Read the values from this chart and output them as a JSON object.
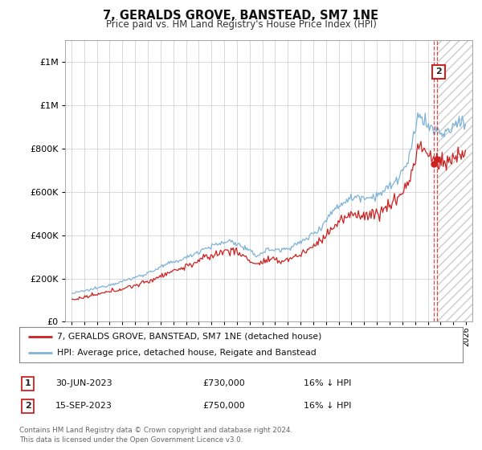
{
  "title": "7, GERALDS GROVE, BANSTEAD, SM7 1NE",
  "subtitle": "Price paid vs. HM Land Registry's House Price Index (HPI)",
  "hpi_color": "#7eb3d8",
  "price_color": "#cc2222",
  "background_color": "#ffffff",
  "grid_color": "#cccccc",
  "ylim": [
    0,
    1300000
  ],
  "xlim_start": 1994.5,
  "xlim_end": 2026.5,
  "transaction1": {
    "date": "30-JUN-2023",
    "price": 730000,
    "label": "16% ↓ HPI",
    "num": "1",
    "t": 2023.496
  },
  "transaction2": {
    "date": "15-SEP-2023",
    "price": 750000,
    "label": "16% ↓ HPI",
    "num": "2",
    "t": 2023.706
  },
  "legend_line1": "7, GERALDS GROVE, BANSTEAD, SM7 1NE (detached house)",
  "legend_line2": "HPI: Average price, detached house, Reigate and Banstead",
  "footer": "Contains HM Land Registry data © Crown copyright and database right 2024.\nThis data is licensed under the Open Government Licence v3.0."
}
